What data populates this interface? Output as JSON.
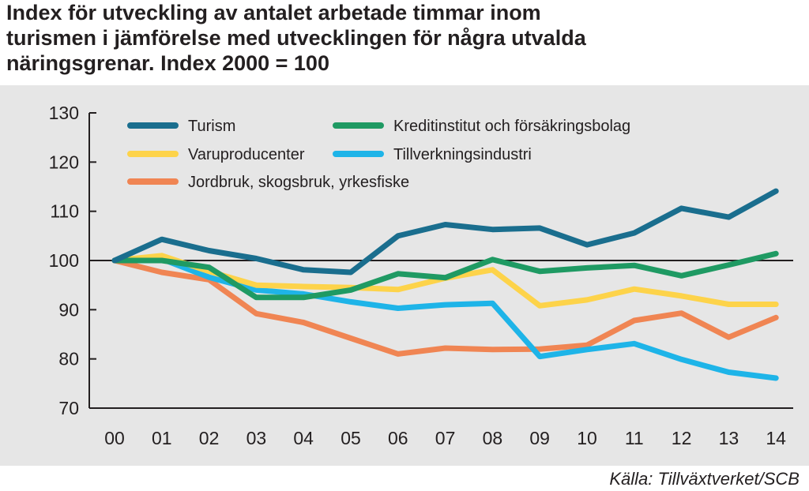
{
  "title_lines": [
    "Index för utveckling av antalet arbetade timmar inom",
    "turismen i jämförelse med utvecklingen för några utvalda",
    "näringsgrenar. Index 2000 = 100"
  ],
  "source": "Källa: Tillväxtverket/SCB",
  "chart_data": {
    "type": "line",
    "title": "Index för utveckling av antalet arbetade timmar inom turismen i jämförelse med utvecklingen för några utvalda näringsgrenar. Index 2000 = 100",
    "categories": [
      "00",
      "01",
      "02",
      "03",
      "04",
      "05",
      "06",
      "07",
      "08",
      "09",
      "10",
      "11",
      "12",
      "13",
      "14"
    ],
    "ylim": [
      70,
      130
    ],
    "yticks": [
      70,
      80,
      90,
      100,
      110,
      120,
      130
    ],
    "reference_line": 100,
    "series": [
      {
        "name": "Turism",
        "color": "#1a6e8e",
        "values": [
          100,
          104.3,
          102,
          100.4,
          98.1,
          97.6,
          105,
          107.3,
          106.3,
          106.6,
          103.2,
          105.6,
          110.6,
          108.8,
          114.1
        ]
      },
      {
        "name": "Kreditinstitut och försäkringsbolag",
        "color": "#1f9a63",
        "values": [
          100,
          100,
          98.6,
          92.5,
          92.5,
          94,
          97.3,
          96.5,
          100.2,
          97.8,
          98.5,
          99,
          96.9,
          99.1,
          101.4
        ]
      },
      {
        "name": "Varuproducenter",
        "color": "#fdd34a",
        "values": [
          100,
          101,
          97.8,
          95,
          94.7,
          94.5,
          94.1,
          96.4,
          98.1,
          90.8,
          92,
          94.2,
          92.8,
          91.1,
          91.1
        ]
      },
      {
        "name": "Tillverkningsindustri",
        "color": "#1eb4e8",
        "values": [
          100,
          100.3,
          96.6,
          94,
          93.2,
          91.6,
          90.3,
          91,
          91.3,
          80.5,
          81.9,
          83.1,
          79.9,
          77.3,
          76.1
        ]
      },
      {
        "name": "Jordbruk, skogsbruk, yrkesfiske",
        "color": "#f08553",
        "values": [
          100,
          97.6,
          96.1,
          89.2,
          87.4,
          84.2,
          81,
          82.2,
          81.9,
          82,
          82.8,
          87.8,
          89.3,
          84.4,
          88.4
        ]
      }
    ]
  }
}
